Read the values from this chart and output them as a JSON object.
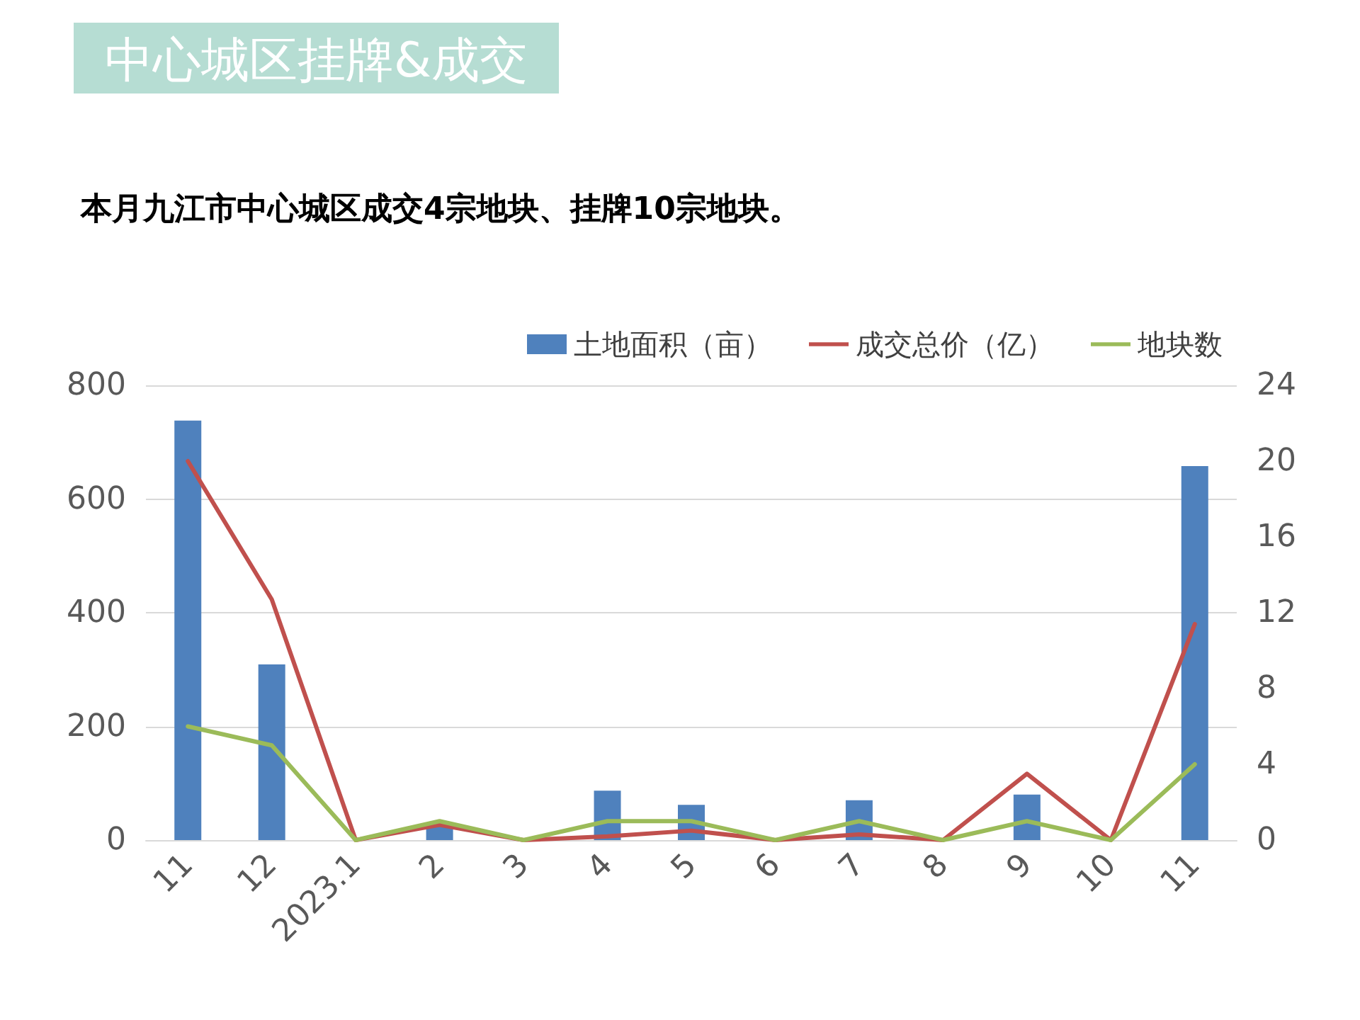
{
  "chart_data": {
    "type": "bar",
    "title": "中心城区挂牌&成交",
    "subtitle": "本月九江市中心城区成交4宗地块、挂牌10宗地块。",
    "categories": [
      "11",
      "12",
      "2023.1",
      "2",
      "3",
      "4",
      "5",
      "6",
      "7",
      "8",
      "9",
      "10",
      "11"
    ],
    "series": [
      {
        "name": "土地面积（亩）",
        "color": "#4f81bd",
        "values": [
          738,
          309,
          0,
          30,
          0,
          87,
          62,
          0,
          70,
          0,
          80,
          0,
          658
        ]
      },
      {
        "name": "成交总价（亿）",
        "type": "line",
        "axis": "y2",
        "color": "#c0504d",
        "values": [
          20,
          12.7,
          0,
          0.8,
          0,
          0.2,
          0.5,
          0,
          0.3,
          0,
          3.5,
          0,
          11.4
        ]
      },
      {
        "name": "地块数",
        "type": "line",
        "axis": "y2",
        "color": "#9bbb59",
        "values": [
          6,
          5,
          0,
          1,
          0,
          1,
          1,
          0,
          1,
          0,
          1,
          0,
          4
        ]
      }
    ],
    "ylim": [
      0,
      800
    ],
    "yticks": [
      0,
      200,
      400,
      600,
      800
    ],
    "y2lim": [
      0,
      24
    ],
    "y2ticks": [
      0,
      4,
      8,
      12,
      16,
      20,
      24
    ],
    "grid": "y",
    "legend": "top right",
    "marker": "none"
  }
}
